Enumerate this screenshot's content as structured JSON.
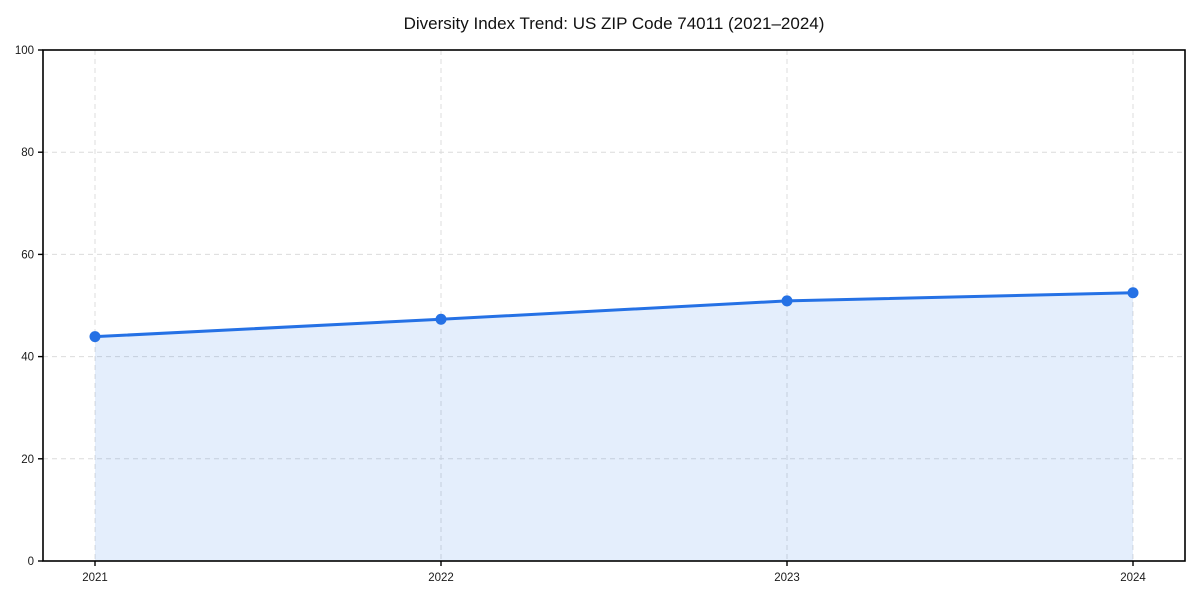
{
  "title": "Diversity Index Trend: US ZIP Code 74011 (2021–2024)",
  "chart_data": {
    "type": "area",
    "title": "Diversity Index Trend: US ZIP Code 74011 (2021–2024)",
    "x": [
      "2021",
      "2022",
      "2023",
      "2024"
    ],
    "series": [
      {
        "name": "Diversity Index",
        "values": [
          43.9,
          47.3,
          50.9,
          52.5
        ]
      }
    ],
    "xlabel": "",
    "ylabel": "",
    "ylim": [
      0,
      100
    ],
    "yticks": [
      0,
      20,
      40,
      60,
      80,
      100
    ],
    "grid": true,
    "grid_style": "dashed",
    "legend": "none",
    "marker": "circle",
    "area_fill_between_first_and_last_point": true,
    "colors": {
      "line": "#2571e5",
      "marker": "#2571e5",
      "fill": "rgba(37,113,229,0.12)",
      "grid": "#dcdcdc",
      "axis": "#000000",
      "tick_label": "#1a1a1a",
      "background": "#ffffff"
    }
  }
}
